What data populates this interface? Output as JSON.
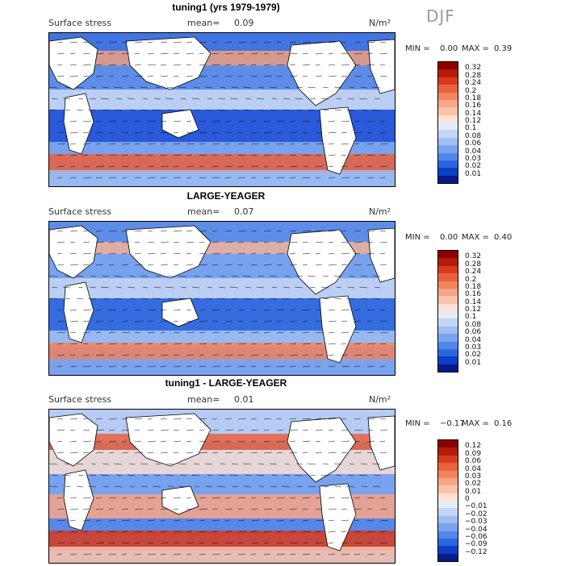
{
  "season": "DJF",
  "panels": [
    {
      "title": "tuning1 (yrs 1979-1979)",
      "variable": "Surface stress",
      "mean_label": "mean=",
      "mean_value": "0.09",
      "units": "N/m²",
      "min_label": "MIN =",
      "min_value": "0.00",
      "max_label": "MAX =",
      "max_value": "0.39",
      "colorbar_ticks": [
        "0.32",
        "0.28",
        "0.24",
        "0.2",
        "0.18",
        "0.16",
        "0.14",
        "0.12",
        "0.1",
        "0.08",
        "0.06",
        "0.04",
        "0.03",
        "0.02",
        "0.01"
      ],
      "colorbar_colors": [
        "#8b0000",
        "#b51a0a",
        "#d73a1f",
        "#e9623d",
        "#f2845f",
        "#f8a486",
        "#fbc3aa",
        "#fde2d4",
        "#e3ecfb",
        "#c3d6f7",
        "#9fbff3",
        "#7aa4ee",
        "#5286e8",
        "#2c66df",
        "#0b3fc4",
        "#061b8a"
      ],
      "grid": "none",
      "colormap": "blue-white-red"
    },
    {
      "title": "LARGE-YEAGER",
      "variable": "Surface stress",
      "mean_label": "mean=",
      "mean_value": "0.07",
      "units": "N/m²",
      "min_label": "MIN =",
      "min_value": "0.00",
      "max_label": "MAX =",
      "max_value": "0.40",
      "colorbar_ticks": [
        "0.32",
        "0.28",
        "0.24",
        "0.2",
        "0.18",
        "0.16",
        "0.14",
        "0.12",
        "0.1",
        "0.08",
        "0.06",
        "0.04",
        "0.03",
        "0.02",
        "0.01"
      ],
      "colorbar_colors": [
        "#8b0000",
        "#b51a0a",
        "#d73a1f",
        "#e9623d",
        "#f2845f",
        "#f8a486",
        "#fbc3aa",
        "#fde2d4",
        "#e3ecfb",
        "#c3d6f7",
        "#9fbff3",
        "#7aa4ee",
        "#5286e8",
        "#2c66df",
        "#0b3fc4",
        "#061b8a"
      ],
      "grid": "none",
      "colormap": "blue-white-red"
    },
    {
      "title": "tuning1 - LARGE-YEAGER",
      "variable": "Surface stress",
      "mean_label": "mean=",
      "mean_value": "0.01",
      "units": "N/m²",
      "min_label": "MIN =",
      "min_value": "−0.17",
      "max_label": "MAX =",
      "max_value": "0.16",
      "colorbar_ticks": [
        "0.12",
        "0.09",
        "0.06",
        "0.04",
        "0.03",
        "0.02",
        "0.01",
        "0",
        "−0.01",
        "−0.02",
        "−0.03",
        "−0.04",
        "−0.06",
        "−0.09",
        "−0.12"
      ],
      "colorbar_colors": [
        "#8b0000",
        "#b51a0a",
        "#d73a1f",
        "#e9623d",
        "#f2845f",
        "#f8a486",
        "#fbc3aa",
        "#fde2d4",
        "#e3ecfb",
        "#c3d6f7",
        "#9fbff3",
        "#7aa4ee",
        "#5286e8",
        "#2c66df",
        "#0b3fc4",
        "#061b8a"
      ],
      "grid": "none",
      "colormap": "blue-white-red"
    }
  ]
}
